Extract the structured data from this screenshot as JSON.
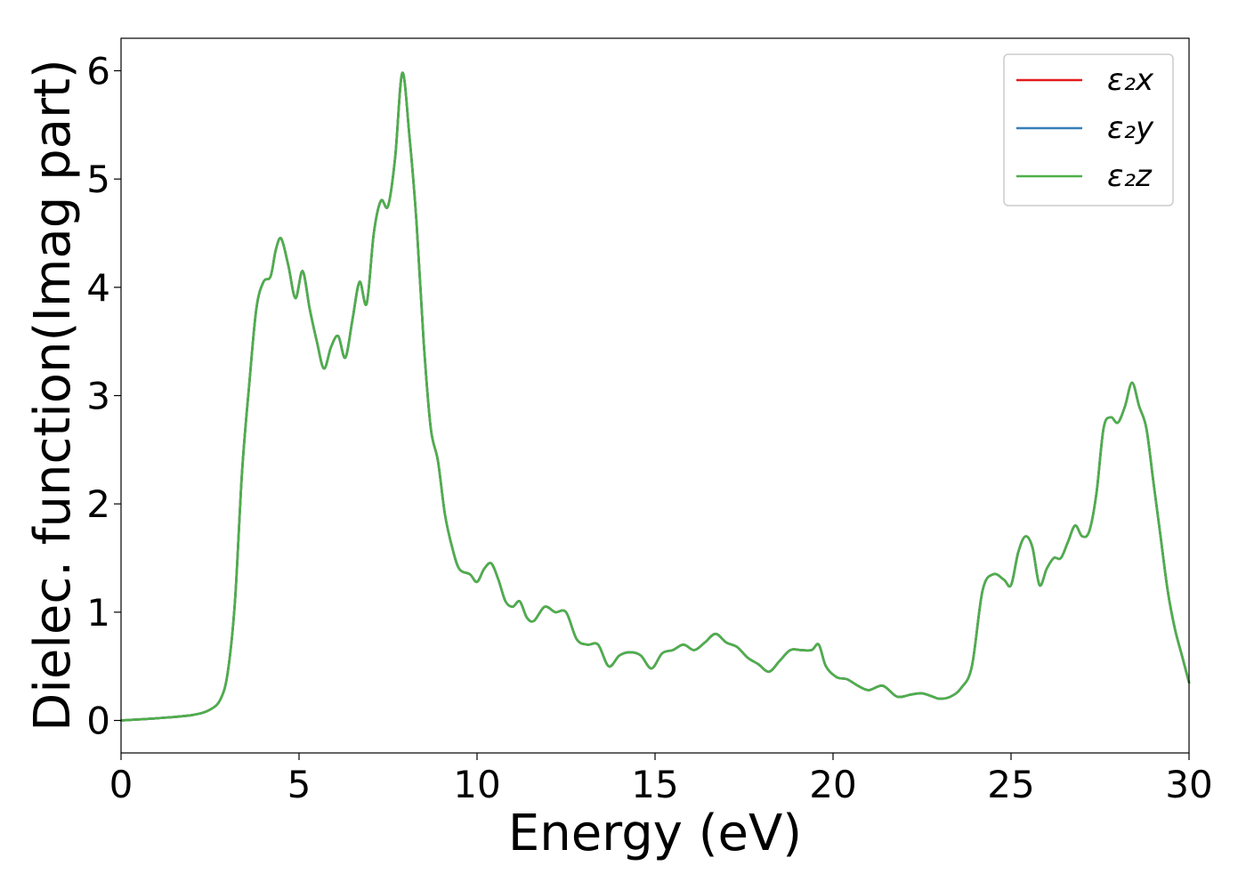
{
  "chart_data": {
    "type": "line",
    "xlabel": "Energy (eV)",
    "ylabel": "Dielec. function(Imag part)",
    "xlim": [
      0,
      30
    ],
    "ylim": [
      -0.3,
      6.3
    ],
    "xticks": [
      0,
      5,
      10,
      15,
      20,
      25,
      30
    ],
    "yticks": [
      0,
      1,
      2,
      3,
      4,
      5,
      6
    ],
    "xtick_labels": [
      "0",
      "5",
      "10",
      "15",
      "20",
      "25",
      "30"
    ],
    "ytick_labels": [
      "0",
      "1",
      "2",
      "3",
      "4",
      "5",
      "6"
    ],
    "grid": false,
    "legend_position": "top-right",
    "x": [
      0,
      1,
      2,
      2.5,
      2.8,
      3.0,
      3.2,
      3.4,
      3.6,
      3.8,
      4.0,
      4.2,
      4.35,
      4.5,
      4.7,
      4.9,
      5.1,
      5.3,
      5.5,
      5.7,
      5.9,
      6.1,
      6.3,
      6.5,
      6.7,
      6.9,
      7.1,
      7.3,
      7.5,
      7.7,
      7.9,
      8.1,
      8.3,
      8.5,
      8.7,
      8.9,
      9.1,
      9.3,
      9.5,
      9.8,
      10.0,
      10.2,
      10.4,
      10.6,
      10.8,
      11.0,
      11.2,
      11.4,
      11.6,
      11.9,
      12.2,
      12.5,
      12.8,
      13.1,
      13.4,
      13.7,
      14.0,
      14.3,
      14.6,
      14.9,
      15.2,
      15.5,
      15.8,
      16.1,
      16.4,
      16.7,
      17.0,
      17.3,
      17.6,
      17.9,
      18.2,
      18.5,
      18.8,
      19.1,
      19.4,
      19.6,
      19.8,
      20.1,
      20.4,
      20.7,
      21.0,
      21.4,
      21.8,
      22.2,
      22.5,
      22.8,
      23.0,
      23.3,
      23.6,
      23.9,
      24.2,
      24.5,
      24.8,
      25.0,
      25.2,
      25.4,
      25.6,
      25.8,
      26.0,
      26.2,
      26.4,
      26.6,
      26.8,
      27.0,
      27.2,
      27.4,
      27.6,
      27.8,
      28.0,
      28.2,
      28.4,
      28.6,
      28.8,
      29.0,
      29.2,
      29.4,
      29.6,
      29.8,
      30.0
    ],
    "series": [
      {
        "name": "ε₂x",
        "color": "#e41a1c",
        "values": [
          0.0,
          0.02,
          0.05,
          0.1,
          0.2,
          0.45,
          1.1,
          2.3,
          3.1,
          3.8,
          4.05,
          4.1,
          4.35,
          4.45,
          4.2,
          3.9,
          4.15,
          3.8,
          3.5,
          3.25,
          3.45,
          3.55,
          3.35,
          3.7,
          4.05,
          3.85,
          4.5,
          4.8,
          4.75,
          5.2,
          5.98,
          5.4,
          4.6,
          3.5,
          2.7,
          2.4,
          1.9,
          1.6,
          1.4,
          1.35,
          1.28,
          1.4,
          1.45,
          1.3,
          1.1,
          1.05,
          1.1,
          0.95,
          0.92,
          1.05,
          1.0,
          1.0,
          0.75,
          0.7,
          0.7,
          0.5,
          0.6,
          0.63,
          0.6,
          0.48,
          0.62,
          0.65,
          0.7,
          0.65,
          0.72,
          0.8,
          0.72,
          0.68,
          0.58,
          0.52,
          0.45,
          0.55,
          0.65,
          0.65,
          0.65,
          0.7,
          0.5,
          0.4,
          0.38,
          0.32,
          0.28,
          0.32,
          0.22,
          0.24,
          0.25,
          0.22,
          0.2,
          0.22,
          0.3,
          0.5,
          1.2,
          1.35,
          1.3,
          1.25,
          1.55,
          1.7,
          1.6,
          1.25,
          1.4,
          1.5,
          1.5,
          1.65,
          1.8,
          1.7,
          1.75,
          2.1,
          2.7,
          2.8,
          2.75,
          2.9,
          3.12,
          2.9,
          2.7,
          2.2,
          1.7,
          1.2,
          0.85,
          0.6,
          0.35
        ]
      },
      {
        "name": "ε₂y",
        "color": "#377eb8",
        "values": [
          0.0,
          0.02,
          0.05,
          0.1,
          0.2,
          0.45,
          1.1,
          2.3,
          3.1,
          3.8,
          4.05,
          4.1,
          4.35,
          4.45,
          4.2,
          3.9,
          4.15,
          3.8,
          3.5,
          3.25,
          3.45,
          3.55,
          3.35,
          3.7,
          4.05,
          3.85,
          4.5,
          4.8,
          4.75,
          5.2,
          5.98,
          5.4,
          4.6,
          3.5,
          2.7,
          2.4,
          1.9,
          1.6,
          1.4,
          1.35,
          1.28,
          1.4,
          1.45,
          1.3,
          1.1,
          1.05,
          1.1,
          0.95,
          0.92,
          1.05,
          1.0,
          1.0,
          0.75,
          0.7,
          0.7,
          0.5,
          0.6,
          0.63,
          0.6,
          0.48,
          0.62,
          0.65,
          0.7,
          0.65,
          0.72,
          0.8,
          0.72,
          0.68,
          0.58,
          0.52,
          0.45,
          0.55,
          0.65,
          0.65,
          0.65,
          0.7,
          0.5,
          0.4,
          0.38,
          0.32,
          0.28,
          0.32,
          0.22,
          0.24,
          0.25,
          0.22,
          0.2,
          0.22,
          0.3,
          0.5,
          1.2,
          1.35,
          1.3,
          1.25,
          1.55,
          1.7,
          1.6,
          1.25,
          1.4,
          1.5,
          1.5,
          1.65,
          1.8,
          1.7,
          1.75,
          2.1,
          2.7,
          2.8,
          2.75,
          2.9,
          3.12,
          2.9,
          2.7,
          2.2,
          1.7,
          1.2,
          0.85,
          0.6,
          0.35
        ]
      },
      {
        "name": "ε₂z",
        "color": "#4daf4a",
        "values": [
          0.0,
          0.02,
          0.05,
          0.1,
          0.2,
          0.45,
          1.1,
          2.3,
          3.1,
          3.8,
          4.05,
          4.1,
          4.35,
          4.45,
          4.2,
          3.9,
          4.15,
          3.8,
          3.5,
          3.25,
          3.45,
          3.55,
          3.35,
          3.7,
          4.05,
          3.85,
          4.5,
          4.8,
          4.75,
          5.2,
          5.98,
          5.4,
          4.6,
          3.5,
          2.7,
          2.4,
          1.9,
          1.6,
          1.4,
          1.35,
          1.28,
          1.4,
          1.45,
          1.3,
          1.1,
          1.05,
          1.1,
          0.95,
          0.92,
          1.05,
          1.0,
          1.0,
          0.75,
          0.7,
          0.7,
          0.5,
          0.6,
          0.63,
          0.6,
          0.48,
          0.62,
          0.65,
          0.7,
          0.65,
          0.72,
          0.8,
          0.72,
          0.68,
          0.58,
          0.52,
          0.45,
          0.55,
          0.65,
          0.65,
          0.65,
          0.7,
          0.5,
          0.4,
          0.38,
          0.32,
          0.28,
          0.32,
          0.22,
          0.24,
          0.25,
          0.22,
          0.2,
          0.22,
          0.3,
          0.5,
          1.2,
          1.35,
          1.3,
          1.25,
          1.55,
          1.7,
          1.6,
          1.25,
          1.4,
          1.5,
          1.5,
          1.65,
          1.8,
          1.7,
          1.75,
          2.1,
          2.7,
          2.8,
          2.75,
          2.9,
          3.12,
          2.9,
          2.7,
          2.2,
          1.7,
          1.2,
          0.85,
          0.6,
          0.35
        ]
      }
    ]
  }
}
